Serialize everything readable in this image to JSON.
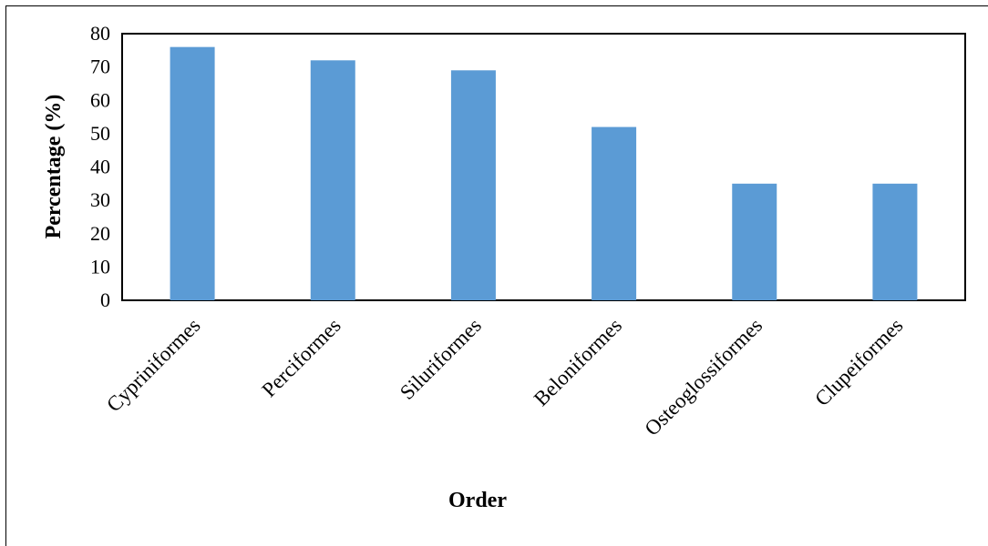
{
  "chart_data": {
    "type": "bar",
    "title": "",
    "xlabel": "Order",
    "ylabel": "Percentage (%)",
    "categories": [
      "Cypriniformes",
      "Perciformes",
      "Siluriformes",
      "Beloniformes",
      "Osteoglossiformes",
      "Clupeiformes"
    ],
    "values": [
      76,
      72,
      69,
      52,
      35,
      35
    ],
    "ylim": [
      0,
      80
    ],
    "yticks": [
      "0",
      "10",
      "20",
      "30",
      "40",
      "50",
      "60",
      "70",
      "80"
    ],
    "grid": false,
    "legend": "none",
    "bar_color": "#5B9BD5"
  }
}
